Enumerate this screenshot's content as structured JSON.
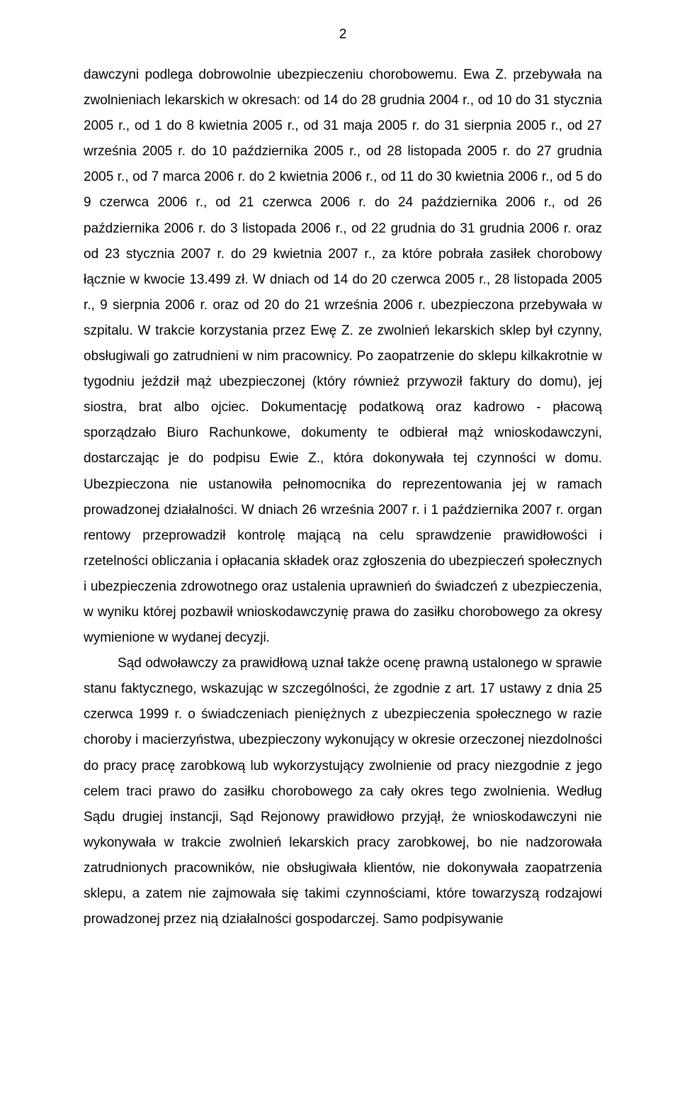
{
  "page": {
    "number": "2",
    "font_family": "Arial",
    "font_size_pt": 14,
    "line_height": 1.9,
    "text_color": "#000000",
    "background_color": "#ffffff",
    "text_align": "justify"
  },
  "body": {
    "p1": "dawczyni podlega dobrowolnie ubezpieczeniu chorobowemu. Ewa Z. przebywała na zwolnieniach lekarskich w okresach: od 14 do 28 grudnia 2004 r., od 10 do 31 stycznia 2005 r., od 1 do 8 kwietnia 2005 r., od 31 maja 2005 r. do 31 sierpnia 2005 r., od 27 września 2005 r. do 10 października 2005 r., od 28 listopada 2005 r. do 27 grudnia 2005 r., od 7 marca 2006 r. do 2 kwietnia 2006 r., od 11 do 30 kwietnia 2006 r., od 5 do 9 czerwca 2006 r., od 21 czerwca 2006 r. do 24 października 2006 r., od 26 października 2006 r. do 3 listopada 2006 r., od 22 grudnia do 31 grudnia 2006 r. oraz od 23 stycznia 2007 r. do 29 kwietnia 2007 r., za które pobrała zasiłek chorobowy łącznie w kwocie 13.499 zł. W dniach od 14 do 20 czerwca 2005 r., 28 listopada 2005 r., 9 sierpnia 2006 r. oraz od 20 do 21 września 2006 r. ubezpieczona przebywała w szpitalu. W trakcie korzystania przez Ewę Z. ze zwolnień lekarskich sklep był czynny, obsługiwali go zatrudnieni w nim pracownicy. Po zaopatrzenie do sklepu kilkakrotnie w tygodniu jeździł mąż ubezpieczonej (który również przywoził faktury do domu), jej siostra, brat albo ojciec. Dokumentację podatkową oraz kadrowo - płacową sporządzało Biuro Rachunkowe, dokumenty te odbierał mąż wnioskodawczyni, dostarczając je do podpisu Ewie Z., która dokonywała tej czynności w domu. Ubezpieczona nie ustanowiła pełnomocnika do reprezentowania jej w ramach prowadzonej działalności. W dniach 26 września 2007 r. i 1 października 2007 r. organ rentowy przeprowadził kontrolę mającą na celu sprawdzenie prawidłowości i rzetelności obliczania i opłacania składek oraz zgłoszenia do ubezpieczeń społecznych i ubezpieczenia zdrowotnego oraz ustalenia uprawnień do świadczeń z ubezpieczenia, w wyniku której pozbawił wnioskodawczynię prawa do zasiłku chorobowego za okresy wymienione w wydanej decyzji.",
    "p2": "Sąd odwoławczy za prawidłową uznał także ocenę prawną ustalonego w sprawie stanu faktycznego, wskazując w szczególności, że zgodnie z art. 17 ustawy z dnia 25 czerwca 1999 r. o świadczeniach pieniężnych z ubezpieczenia społecznego w razie choroby i macierzyństwa, ubezpieczony wykonujący w okresie orzeczonej niezdolności do pracy pracę zarobkową lub wykorzystujący zwolnienie od pracy niezgodnie z jego celem traci prawo do zasiłku chorobowego za cały okres tego zwolnienia. Według Sądu drugiej instancji, Sąd Rejonowy prawidłowo przyjął, że wnioskodawczyni nie wykonywała w trakcie zwolnień lekarskich pracy zarobkowej, bo nie nadzorowała zatrudnionych pracowników, nie obsługiwała klientów, nie dokonywała zaopatrzenia sklepu, a zatem nie zajmowała się takimi czynnościami, które towarzyszą rodzajowi prowadzonej przez nią działalności gospodarczej. Samo podpisywanie"
  }
}
